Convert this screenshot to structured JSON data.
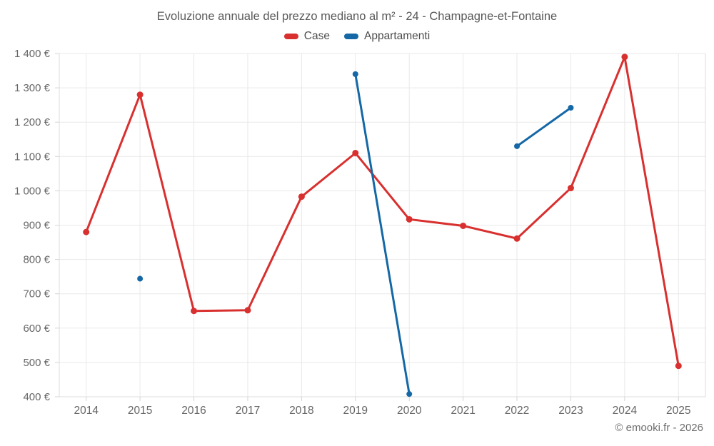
{
  "footer": {
    "credit": "© emooki.fr - 2026"
  },
  "chart_data": {
    "type": "line",
    "title": "Evoluzione annuale del prezzo mediano al m² - 24 - Champagne-et-Fontaine",
    "categories": [
      "2014",
      "2015",
      "2016",
      "2017",
      "2018",
      "2019",
      "2020",
      "2021",
      "2022",
      "2023",
      "2024",
      "2025"
    ],
    "series": [
      {
        "name": "Case",
        "color": "#d8302f",
        "marker_radius": 4.5,
        "line_width": 3,
        "values": [
          880,
          1280,
          650,
          652,
          983,
          1110,
          917,
          898,
          861,
          1008,
          1390,
          490
        ]
      },
      {
        "name": "Appartamenti",
        "color": "#1568a6",
        "marker_radius": 4,
        "line_width": 3,
        "values": [
          null,
          744,
          null,
          null,
          null,
          1340,
          408,
          null,
          1130,
          1242,
          null,
          null
        ]
      }
    ],
    "ylim": [
      400,
      1400
    ],
    "ytick_values": [
      400,
      500,
      600,
      700,
      800,
      900,
      1000,
      1100,
      1200,
      1300,
      1400
    ],
    "ytick_labels": [
      "400 €",
      "500 €",
      "600 €",
      "700 €",
      "800 €",
      "900 €",
      "1 000 €",
      "1 100 €",
      "1 200 €",
      "1 300 €",
      "1 400 €"
    ],
    "grid": true,
    "legend_position": "top",
    "span_gaps": false,
    "colors": {
      "grid": "#e9e9e9",
      "axis_border": "#dcdcdc",
      "tick": "#d4d4d4",
      "label": "#666666",
      "title": "#585858"
    }
  }
}
